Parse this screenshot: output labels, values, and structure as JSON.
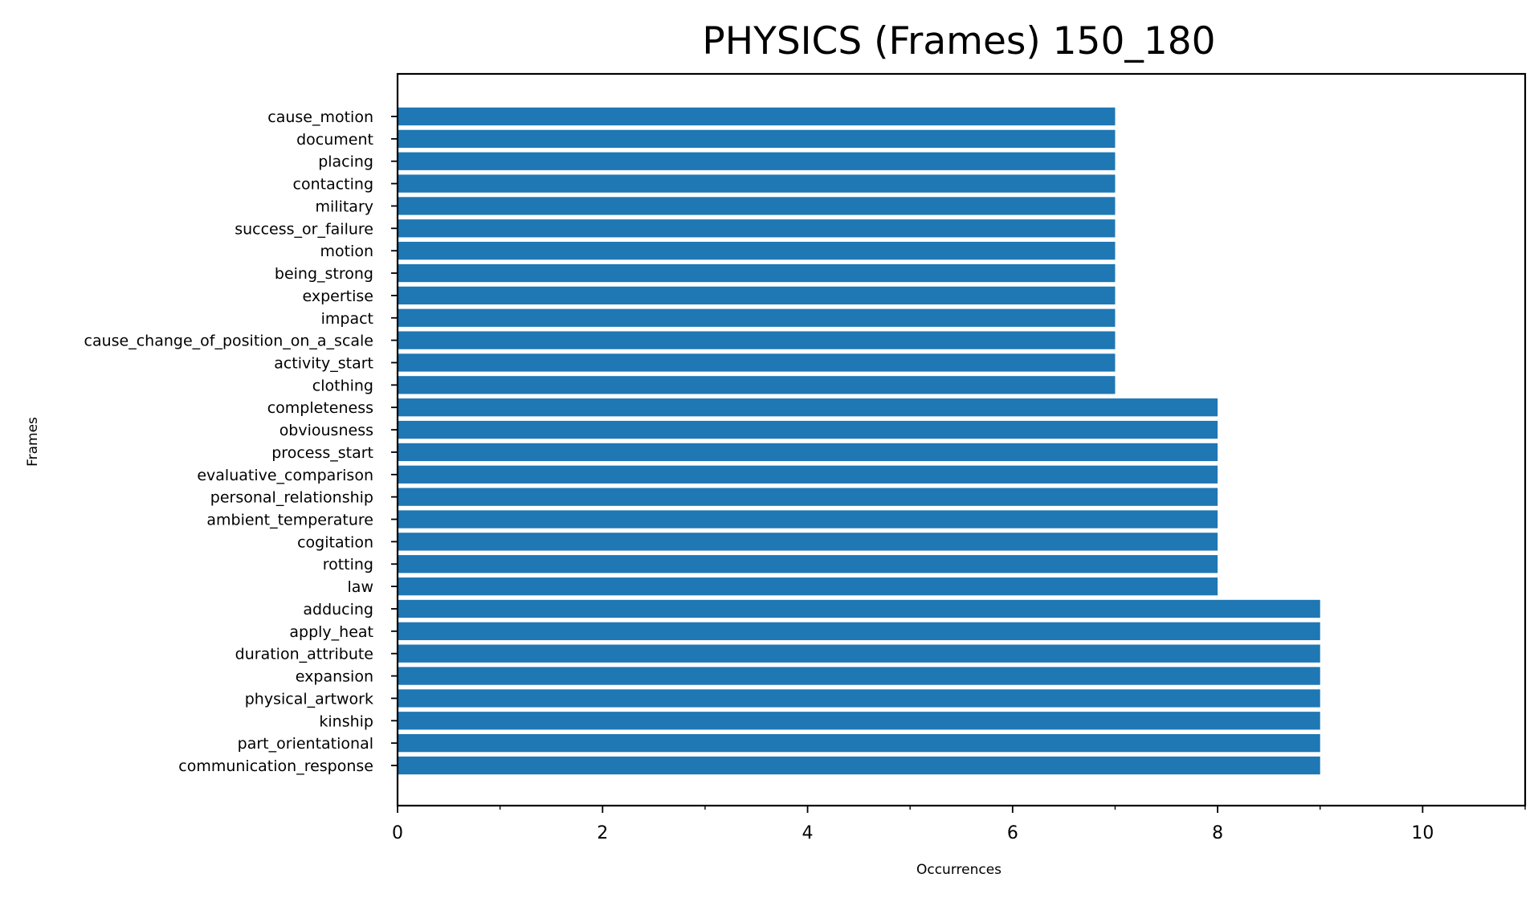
{
  "chart_data": {
    "type": "bar",
    "orientation": "horizontal",
    "title": "PHYSICS (Frames) 150_180",
    "xlabel": "Occurrences",
    "ylabel": "Frames",
    "xlim": [
      0,
      11
    ],
    "xticks": [
      0,
      2,
      4,
      6,
      8,
      10
    ],
    "xticks_minor": [
      1,
      3,
      5,
      7,
      9,
      11
    ],
    "grid": false,
    "legend": "none",
    "bar_color": "#1f77b4",
    "categories": [
      "cause_motion",
      "document",
      "placing",
      "contacting",
      "military",
      "success_or_failure",
      "motion",
      "being_strong",
      "expertise",
      "impact",
      "cause_change_of_position_on_a_scale",
      "activity_start",
      "clothing",
      "completeness",
      "obviousness",
      "process_start",
      "evaluative_comparison",
      "personal_relationship",
      "ambient_temperature",
      "cogitation",
      "rotting",
      "law",
      "adducing",
      "apply_heat",
      "duration_attribute",
      "expansion",
      "physical_artwork",
      "kinship",
      "part_orientational",
      "communication_response"
    ],
    "values": [
      7,
      7,
      7,
      7,
      7,
      7,
      7,
      7,
      7,
      7,
      7,
      7,
      7,
      8,
      8,
      8,
      8,
      8,
      8,
      8,
      8,
      8,
      9,
      9,
      9,
      9,
      9,
      9,
      9,
      9
    ]
  }
}
